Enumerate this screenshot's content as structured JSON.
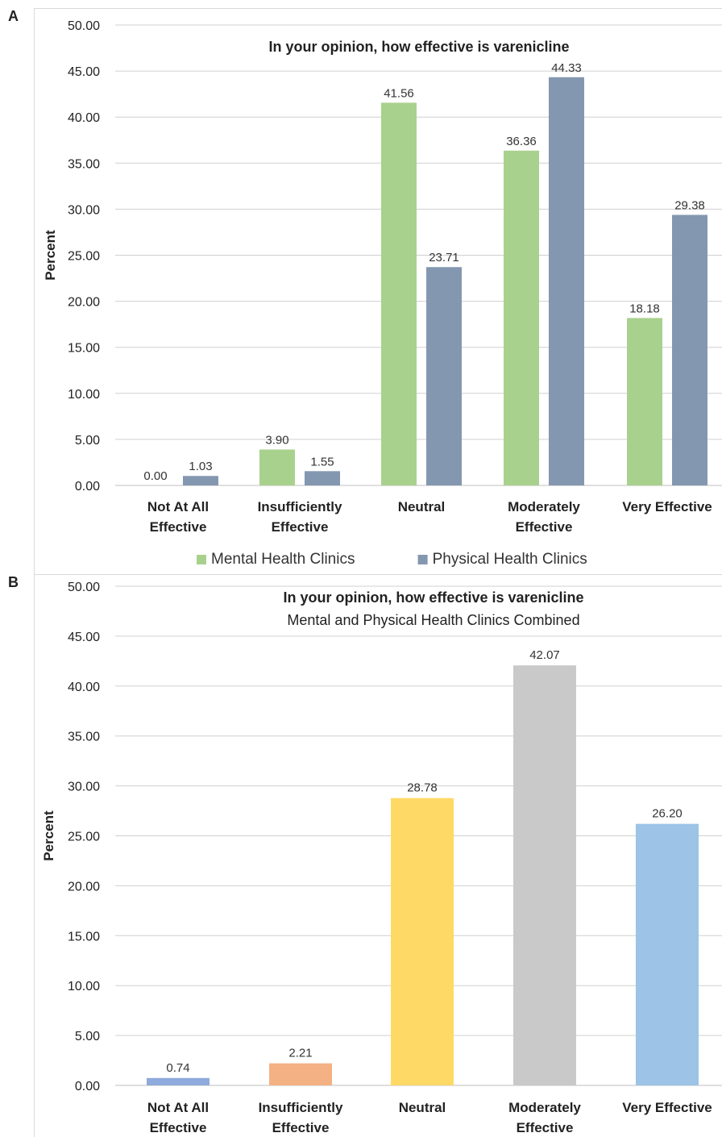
{
  "chart_data": [
    {
      "panel_label": "A",
      "type": "bar",
      "title": "In your opinion, how effective is varenicline",
      "subtitle": "",
      "ylabel": "Percent",
      "xlabel": "",
      "ylim": [
        0,
        50
      ],
      "yticks": [
        "0.00",
        "5.00",
        "10.00",
        "15.00",
        "20.00",
        "25.00",
        "30.00",
        "35.00",
        "40.00",
        "45.00",
        "50.00"
      ],
      "grid": true,
      "legend_position": "bottom",
      "categories": [
        [
          "Not At All",
          "Effective"
        ],
        [
          "Insufficiently",
          "Effective"
        ],
        [
          "Neutral"
        ],
        [
          "Moderately",
          "Effective"
        ],
        [
          "Very Effective"
        ]
      ],
      "series": [
        {
          "name": "Mental Health Clinics",
          "color": "#a9d18e",
          "values": [
            0.0,
            3.9,
            41.56,
            36.36,
            18.18
          ],
          "labels": [
            "0.00",
            "3.90",
            "41.56",
            "36.36",
            "18.18"
          ]
        },
        {
          "name": "Physical Health Clinics",
          "color": "#8497b0",
          "values": [
            1.03,
            1.55,
            23.71,
            44.33,
            29.38
          ],
          "labels": [
            "1.03",
            "1.55",
            "23.71",
            "44.33",
            "29.38"
          ]
        }
      ]
    },
    {
      "panel_label": "B",
      "type": "bar",
      "title": "In your opinion, how effective is varenicline",
      "subtitle": "Mental and Physical Health Clinics Combined",
      "ylabel": "Percent",
      "xlabel": "",
      "ylim": [
        0,
        50
      ],
      "yticks": [
        "0.00",
        "5.00",
        "10.00",
        "15.00",
        "20.00",
        "25.00",
        "30.00",
        "35.00",
        "40.00",
        "45.00",
        "50.00"
      ],
      "grid": true,
      "categories": [
        [
          "Not At All",
          "Effective"
        ],
        [
          "Insufficiently",
          "Effective"
        ],
        [
          "Neutral"
        ],
        [
          "Moderately",
          "Effective"
        ],
        [
          "Very Effective"
        ]
      ],
      "values": [
        0.74,
        2.21,
        28.78,
        42.07,
        26.2
      ],
      "labels": [
        "0.74",
        "2.21",
        "28.78",
        "42.07",
        "26.20"
      ],
      "colors": [
        "#8faadc",
        "#f4b183",
        "#ffd966",
        "#c9c9c9",
        "#9dc3e6"
      ]
    }
  ]
}
